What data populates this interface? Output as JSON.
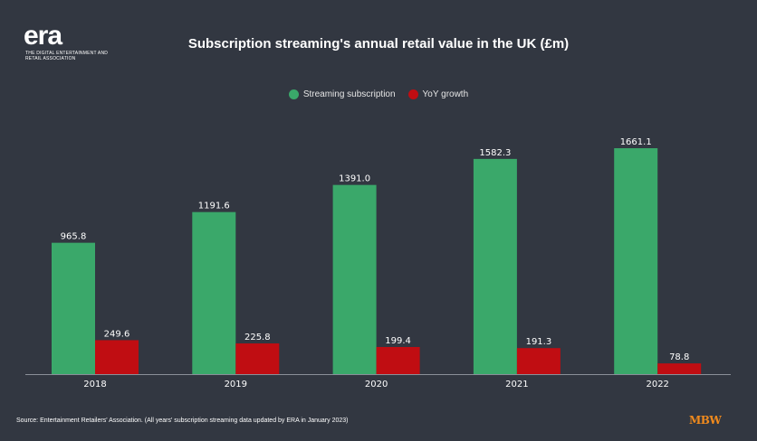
{
  "logo": {
    "text": "era",
    "subtitle": "THE DIGITAL ENTERTAINMENT AND RETAIL ASSOCIATION"
  },
  "chart_data": {
    "type": "bar",
    "title": "Subscription streaming's annual retail value in the UK (£m)",
    "categories": [
      "2018",
      "2019",
      "2020",
      "2021",
      "2022"
    ],
    "series": [
      {
        "name": "Streaming subscription",
        "color": "#3aa86a",
        "values": [
          965.8,
          1191.6,
          1391.0,
          1582.3,
          1661.1
        ]
      },
      {
        "name": "YoY growth",
        "color": "#c00d12",
        "values": [
          249.6,
          225.8,
          199.4,
          191.3,
          78.8
        ]
      }
    ],
    "value_labels": [
      [
        "965.8",
        "1191.6",
        "1391.0",
        "1582.3",
        "1661.1"
      ],
      [
        "249.6",
        "225.8",
        "199.4",
        "191.3",
        "78.8"
      ]
    ],
    "legend_position": "top-center",
    "grid": false,
    "ylim": [
      0,
      1700
    ]
  },
  "footer": {
    "source": "Source: Entertainment Retailers' Association. (All years' subscription streaming data updated by ERA in January 2023)",
    "brand": "MBW"
  }
}
